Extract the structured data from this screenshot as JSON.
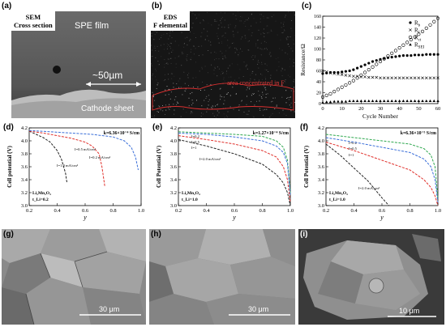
{
  "panels": {
    "a": {
      "letter": "(a)",
      "title_line1": "SEM",
      "title_line2": "Cross section",
      "film_label": "SPE film",
      "scale_label": "~50µm",
      "sheet_label": "Cathode sheet"
    },
    "b": {
      "letter": "(b)",
      "title_line1": "EDS",
      "title_line2": "F elemental",
      "annotation": "area concentrated in F"
    },
    "c": {
      "letter": "(c)"
    },
    "d": {
      "letter": "(d)",
      "k_label": "k=6.36×10⁻⁴ S/cm",
      "material": "Li₂Mn₂O₄",
      "tli": "t_Li=0.2"
    },
    "e": {
      "letter": "(e)",
      "k_label": "k=1.27×10⁻⁴ S/cm",
      "material": "Li₂Mn₂O₄",
      "tli": "t_Li=1.0"
    },
    "f": {
      "letter": "(f)",
      "k_label": "k=6.36×10⁻⁵ S/cm",
      "material": "Li₂Mn₂O₄",
      "tli": "t_Li=1.0"
    },
    "g": {
      "letter": "(g)",
      "scale_label": "30 μm"
    },
    "h": {
      "letter": "(h)",
      "scale_label": "30 μm"
    },
    "i": {
      "letter": "(i)",
      "scale_label": "10 μm"
    }
  },
  "chart_data": [
    {
      "id": "c",
      "type": "scatter",
      "xlabel": "Cycle Number",
      "ylabel": "Resistance/Ω",
      "xlim": [
        0,
        60
      ],
      "ylim": [
        0,
        160
      ],
      "xticks": [
        0,
        10,
        20,
        30,
        40,
        50,
        60
      ],
      "yticks": [
        0,
        20,
        40,
        60,
        80,
        100,
        120,
        140,
        160
      ],
      "series": [
        {
          "name": "R_b",
          "marker": "filled-circle",
          "x": [
            0,
            2,
            4,
            6,
            8,
            10,
            12,
            14,
            16,
            18,
            20,
            22,
            24,
            26,
            28,
            30,
            32,
            34,
            36,
            38,
            40,
            42,
            44,
            46,
            48,
            50,
            52,
            54,
            56,
            58,
            60
          ],
          "y": [
            55,
            56,
            57,
            57,
            57,
            58,
            59,
            60,
            62,
            65,
            68,
            71,
            74,
            77,
            79,
            81,
            83,
            84,
            85,
            86,
            87,
            88,
            88,
            88,
            89,
            89,
            89,
            90,
            90,
            90,
            90
          ]
        },
        {
          "name": "R_f",
          "marker": "x",
          "x": [
            0,
            2,
            4,
            6,
            8,
            10,
            12,
            14,
            16,
            18,
            20,
            22,
            24,
            26,
            28,
            30,
            32,
            34,
            36,
            38,
            40,
            42,
            44,
            46,
            48,
            50,
            52,
            54,
            56,
            58,
            60
          ],
          "y": [
            60,
            58,
            56,
            55,
            54,
            53,
            52,
            51,
            50,
            50,
            49,
            49,
            48,
            48,
            48,
            47,
            47,
            47,
            47,
            47,
            47,
            47,
            47,
            47,
            47,
            47,
            47,
            47,
            47,
            47,
            47
          ]
        },
        {
          "name": "R_ct",
          "marker": "open-circle",
          "x": [
            0,
            2,
            4,
            6,
            8,
            10,
            12,
            14,
            16,
            18,
            20,
            22,
            24,
            26,
            28,
            30,
            32,
            34,
            36,
            38,
            40,
            42,
            44,
            46,
            48,
            50,
            52,
            54,
            56,
            58,
            60
          ],
          "y": [
            12,
            15,
            18,
            22,
            26,
            30,
            34,
            38,
            42,
            47,
            52,
            57,
            62,
            67,
            72,
            77,
            82,
            87,
            92,
            97,
            102,
            107,
            112,
            117,
            122,
            127,
            132,
            138,
            144,
            150,
            156
          ]
        },
        {
          "name": "R_SEI",
          "marker": "filled-triangle",
          "x": [
            0,
            2,
            4,
            6,
            8,
            10,
            12,
            14,
            16,
            18,
            20,
            22,
            24,
            26,
            28,
            30,
            32,
            34,
            36,
            38,
            40,
            42,
            44,
            46,
            48,
            50,
            52,
            54,
            56,
            58,
            60
          ],
          "y": [
            2,
            3,
            3,
            4,
            4,
            4,
            4,
            5,
            5,
            5,
            5,
            5,
            5,
            5,
            5,
            5,
            5,
            5,
            5,
            5,
            5,
            5,
            5,
            5,
            5,
            5,
            5,
            5,
            5,
            5,
            5
          ]
        }
      ]
    },
    {
      "id": "d",
      "type": "line",
      "xlabel": "y",
      "ylabel": "Cell potential (V)",
      "xlim": [
        0.2,
        1.0
      ],
      "ylim": [
        3.0,
        4.2
      ],
      "xticks": [
        0.2,
        0.4,
        0.6,
        0.8,
        1.0
      ],
      "yticks": [
        3.0,
        3.2,
        3.4,
        3.6,
        3.8,
        4.0,
        4.2
      ],
      "series": [
        {
          "name": "I=1.0 mA/cm²",
          "color": "#222222",
          "x": [
            0.2,
            0.25,
            0.3,
            0.35,
            0.4,
            0.43,
            0.46,
            0.47
          ],
          "y": [
            4.15,
            4.1,
            4.05,
            3.98,
            3.85,
            3.72,
            3.5,
            3.35
          ]
        },
        {
          "name": "I=0.5 mA/cm²",
          "color": "#e0302b",
          "x": [
            0.2,
            0.3,
            0.4,
            0.5,
            0.6,
            0.65,
            0.7,
            0.72,
            0.74
          ],
          "y": [
            4.15,
            4.12,
            4.08,
            4.04,
            3.98,
            3.92,
            3.8,
            3.6,
            3.3
          ]
        },
        {
          "name": "I=0.2 mA/cm²",
          "color": "#3b6fd9",
          "x": [
            0.2,
            0.35,
            0.5,
            0.65,
            0.8,
            0.88,
            0.93,
            0.96,
            0.98
          ],
          "y": [
            4.16,
            4.14,
            4.12,
            4.1,
            4.06,
            4.0,
            3.9,
            3.75,
            3.55
          ]
        }
      ]
    },
    {
      "id": "e",
      "type": "line",
      "xlabel": "y",
      "ylabel": "Cell Potential (V)",
      "xlim": [
        0.2,
        1.0
      ],
      "ylim": [
        3.0,
        4.2
      ],
      "xticks": [
        0.2,
        0.4,
        0.6,
        0.8,
        1.0
      ],
      "yticks": [
        3.0,
        3.2,
        3.4,
        3.6,
        3.8,
        4.0,
        4.2
      ],
      "series": [
        {
          "name": "I=0.2",
          "color": "#2fa84f",
          "x": [
            0.2,
            0.4,
            0.6,
            0.8,
            0.9,
            0.95,
            0.98,
            1.0
          ],
          "y": [
            4.14,
            4.12,
            4.1,
            4.07,
            4.0,
            3.9,
            3.7,
            3.2
          ]
        },
        {
          "name": "I=0.5",
          "color": "#3b6fd9",
          "x": [
            0.2,
            0.4,
            0.6,
            0.8,
            0.9,
            0.95,
            0.98,
            1.0
          ],
          "y": [
            4.12,
            4.1,
            4.06,
            4.0,
            3.92,
            3.82,
            3.65,
            3.15
          ]
        },
        {
          "name": "I=1",
          "color": "#e0302b",
          "x": [
            0.2,
            0.4,
            0.6,
            0.8,
            0.9,
            0.95,
            0.98,
            1.0
          ],
          "y": [
            4.08,
            4.02,
            3.95,
            3.85,
            3.75,
            3.6,
            3.4,
            3.05
          ]
        },
        {
          "name": "I=2.0 mA/cm²",
          "color": "#222222",
          "x": [
            0.2,
            0.4,
            0.6,
            0.8,
            0.9,
            0.95,
            0.98,
            1.0
          ],
          "y": [
            4.02,
            3.92,
            3.8,
            3.64,
            3.48,
            3.35,
            3.2,
            3.0
          ]
        }
      ]
    },
    {
      "id": "f",
      "type": "line",
      "xlabel": "y",
      "ylabel": "Cell Potential (V)",
      "xlim": [
        0.2,
        1.0
      ],
      "ylim": [
        3.0,
        4.2
      ],
      "xticks": [
        0.2,
        0.4,
        0.6,
        0.8,
        1.0
      ],
      "yticks": [
        3.0,
        3.2,
        3.4,
        3.6,
        3.8,
        4.0,
        4.2
      ],
      "series": [
        {
          "name": "I=0.2",
          "color": "#2fa84f",
          "x": [
            0.2,
            0.4,
            0.6,
            0.8,
            0.9,
            0.95,
            0.98,
            1.0
          ],
          "y": [
            4.1,
            4.05,
            4.0,
            3.95,
            3.88,
            3.78,
            3.6,
            3.1
          ]
        },
        {
          "name": "I=0.5",
          "color": "#3b6fd9",
          "x": [
            0.2,
            0.4,
            0.6,
            0.8,
            0.9,
            0.95,
            0.98,
            1.0
          ],
          "y": [
            4.05,
            3.98,
            3.9,
            3.82,
            3.72,
            3.6,
            3.4,
            3.05
          ]
        },
        {
          "name": "I=1",
          "color": "#e0302b",
          "x": [
            0.2,
            0.4,
            0.6,
            0.8,
            0.9,
            0.95,
            0.98,
            1.0
          ],
          "y": [
            3.98,
            3.85,
            3.7,
            3.55,
            3.4,
            3.28,
            3.15,
            3.0
          ]
        },
        {
          "name": "I=2.0 mA/cm²",
          "color": "#222222",
          "x": [
            0.2,
            0.3,
            0.4,
            0.5,
            0.55,
            0.6,
            0.65
          ],
          "y": [
            3.95,
            3.78,
            3.58,
            3.38,
            3.25,
            3.12,
            3.0
          ]
        }
      ]
    }
  ]
}
